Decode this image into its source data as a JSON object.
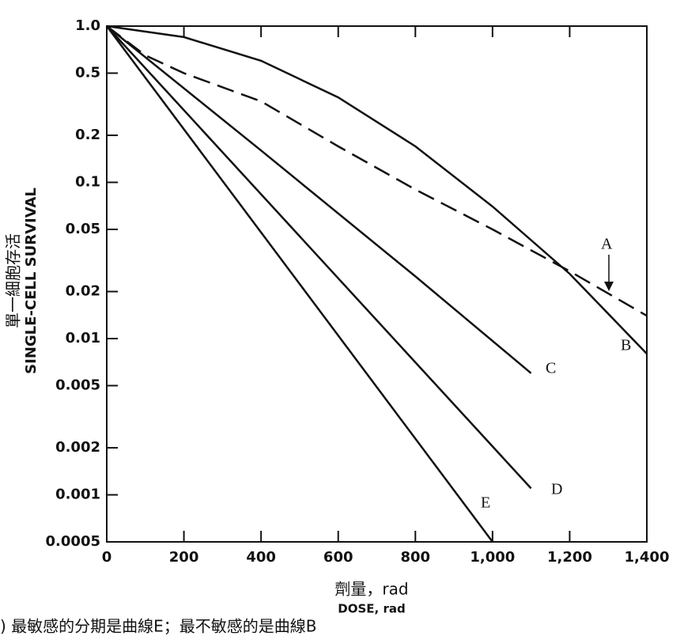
{
  "chart_data": {
    "type": "line",
    "log_y": true,
    "y_label_lines": [
      "單一細胞存活",
      "SINGLE-CELL SURVIVAL"
    ],
    "x_label_lines": [
      "劑量，rad",
      "DOSE, rad"
    ],
    "caption": ") 最敏感的分期是曲線E；最不敏感的是曲線B",
    "xlim": [
      0,
      1400
    ],
    "xticks": [
      0,
      200,
      400,
      600,
      800,
      {
        "value": 1000,
        "label": "1,000"
      },
      {
        "value": 1200,
        "label": "1,200"
      },
      {
        "value": 1400,
        "label": "1,400"
      }
    ],
    "ylim": [
      0.0005,
      1
    ],
    "yticks": [
      {
        "value": 1,
        "label": "1.0"
      },
      0.5,
      0.2,
      0.1,
      0.05,
      0.02,
      0.01,
      0.005,
      0.002,
      0.001,
      0.0005
    ],
    "series": [
      {
        "name": "A",
        "color": "#111111",
        "dashed": true,
        "x": [
          0,
          100,
          200,
          400,
          600,
          800,
          1000,
          1200,
          1400
        ],
        "values": [
          1,
          0.65,
          0.5,
          0.33,
          0.17,
          0.09,
          0.05,
          0.027,
          0.014
        ]
      },
      {
        "name": "B",
        "color": "#111111",
        "x": [
          0,
          200,
          400,
          600,
          800,
          1000,
          1200,
          1400
        ],
        "values": [
          1,
          0.85,
          0.6,
          0.35,
          0.17,
          0.07,
          0.026,
          0.008
        ]
      },
      {
        "name": "C",
        "color": "#111111",
        "x": [
          0,
          400,
          800,
          1100
        ],
        "values": [
          1,
          0.16,
          0.025,
          0.006
        ]
      },
      {
        "name": "D",
        "color": "#111111",
        "x": [
          0,
          1100
        ],
        "values": [
          1,
          0.0011
        ]
      },
      {
        "name": "E",
        "color": "#111111",
        "x": [
          0,
          1000
        ],
        "values": [
          1,
          0.0005
        ]
      }
    ]
  }
}
